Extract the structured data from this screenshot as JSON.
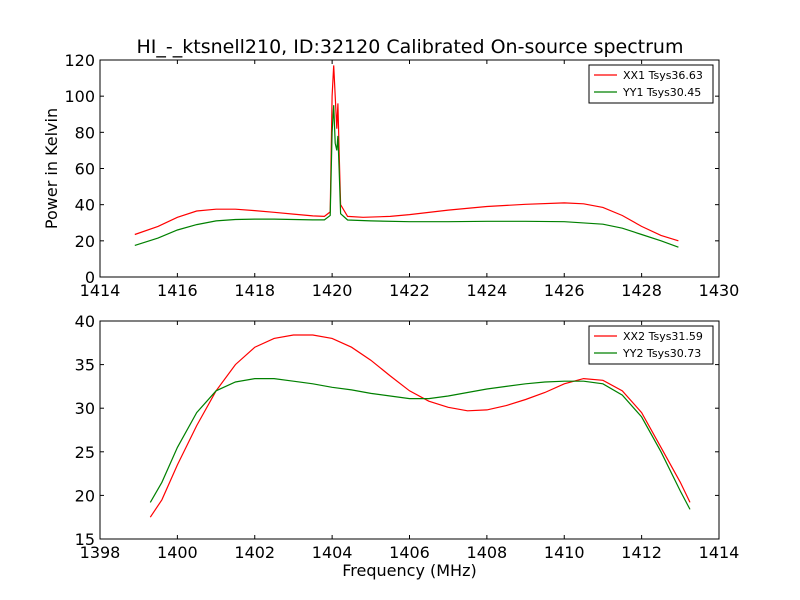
{
  "title": "HI_-_ktsnell210, ID:32120 Calibrated On-source spectrum",
  "chart_data": [
    {
      "type": "line",
      "ylabel": "Power in Kelvin",
      "xlabel": "",
      "xlim": [
        1414,
        1430
      ],
      "ylim": [
        0,
        120
      ],
      "x_ticks": [
        1414,
        1416,
        1418,
        1420,
        1422,
        1424,
        1426,
        1428,
        1430
      ],
      "y_ticks": [
        0,
        20,
        40,
        60,
        80,
        100,
        120
      ],
      "legend_position": "top-right",
      "series": [
        {
          "name": "XX1 Tsys36.63",
          "color": "#ff0000",
          "points": [
            [
              1414.9,
              23.5
            ],
            [
              1415.5,
              28
            ],
            [
              1416,
              33
            ],
            [
              1416.5,
              36.5
            ],
            [
              1417,
              37.5
            ],
            [
              1417.5,
              37.5
            ],
            [
              1418,
              36.7
            ],
            [
              1418.5,
              35.8
            ],
            [
              1419,
              34.8
            ],
            [
              1419.5,
              33.8
            ],
            [
              1419.8,
              33.5
            ],
            [
              1419.95,
              36
            ],
            [
              1420.0,
              100
            ],
            [
              1420.04,
              117
            ],
            [
              1420.08,
              100
            ],
            [
              1420.12,
              82
            ],
            [
              1420.15,
              96
            ],
            [
              1420.18,
              70
            ],
            [
              1420.22,
              40
            ],
            [
              1420.4,
              33.5
            ],
            [
              1420.8,
              33
            ],
            [
              1421.5,
              33.5
            ],
            [
              1422,
              34.5
            ],
            [
              1423,
              37
            ],
            [
              1424,
              39
            ],
            [
              1425,
              40.2
            ],
            [
              1426,
              41
            ],
            [
              1426.5,
              40.5
            ],
            [
              1427,
              38.5
            ],
            [
              1427.5,
              34
            ],
            [
              1428,
              28
            ],
            [
              1428.5,
              23
            ],
            [
              1428.95,
              20
            ]
          ]
        },
        {
          "name": "YY1 Tsys30.45",
          "color": "#008000",
          "points": [
            [
              1414.9,
              17.5
            ],
            [
              1415.5,
              21.5
            ],
            [
              1416,
              26
            ],
            [
              1416.5,
              29
            ],
            [
              1417,
              31
            ],
            [
              1417.5,
              31.8
            ],
            [
              1418,
              32
            ],
            [
              1418.5,
              32
            ],
            [
              1419,
              31.8
            ],
            [
              1419.5,
              31.6
            ],
            [
              1419.8,
              31.6
            ],
            [
              1419.95,
              34
            ],
            [
              1420.0,
              80
            ],
            [
              1420.04,
              95
            ],
            [
              1420.08,
              74
            ],
            [
              1420.12,
              70
            ],
            [
              1420.15,
              78
            ],
            [
              1420.18,
              60
            ],
            [
              1420.22,
              35
            ],
            [
              1420.4,
              31.5
            ],
            [
              1421,
              31
            ],
            [
              1422,
              30.6
            ],
            [
              1423,
              30.6
            ],
            [
              1424,
              30.8
            ],
            [
              1425,
              30.8
            ],
            [
              1426,
              30.6
            ],
            [
              1427,
              29.2
            ],
            [
              1427.5,
              27
            ],
            [
              1428,
              23.5
            ],
            [
              1428.5,
              20
            ],
            [
              1428.95,
              16.5
            ]
          ]
        }
      ]
    },
    {
      "type": "line",
      "ylabel": "",
      "xlabel": "Frequency (MHz)",
      "xlim": [
        1398,
        1414
      ],
      "ylim": [
        15,
        40
      ],
      "x_ticks": [
        1398,
        1400,
        1402,
        1404,
        1406,
        1408,
        1410,
        1412,
        1414
      ],
      "y_ticks": [
        15,
        20,
        25,
        30,
        35,
        40
      ],
      "legend_position": "top-right",
      "series": [
        {
          "name": "XX2 Tsys31.59",
          "color": "#ff0000",
          "points": [
            [
              1399.3,
              17.5
            ],
            [
              1399.6,
              19.5
            ],
            [
              1400,
              23.5
            ],
            [
              1400.5,
              28
            ],
            [
              1401,
              32
            ],
            [
              1401.5,
              35
            ],
            [
              1402,
              37
            ],
            [
              1402.5,
              38
            ],
            [
              1403,
              38.4
            ],
            [
              1403.5,
              38.4
            ],
            [
              1404,
              38
            ],
            [
              1404.5,
              37
            ],
            [
              1405,
              35.5
            ],
            [
              1405.5,
              33.7
            ],
            [
              1406,
              32
            ],
            [
              1406.5,
              30.8
            ],
            [
              1407,
              30.1
            ],
            [
              1407.5,
              29.7
            ],
            [
              1408,
              29.8
            ],
            [
              1408.5,
              30.3
            ],
            [
              1409,
              31
            ],
            [
              1409.5,
              31.8
            ],
            [
              1410,
              32.8
            ],
            [
              1410.5,
              33.4
            ],
            [
              1411,
              33.2
            ],
            [
              1411.5,
              32
            ],
            [
              1412,
              29.5
            ],
            [
              1412.5,
              25.5
            ],
            [
              1413,
              21.5
            ],
            [
              1413.25,
              19.2
            ]
          ]
        },
        {
          "name": "YY2 Tsys30.73",
          "color": "#008000",
          "points": [
            [
              1399.3,
              19.2
            ],
            [
              1399.6,
              21.5
            ],
            [
              1400,
              25.5
            ],
            [
              1400.5,
              29.5
            ],
            [
              1401,
              32
            ],
            [
              1401.5,
              33
            ],
            [
              1402,
              33.4
            ],
            [
              1402.5,
              33.4
            ],
            [
              1403,
              33.1
            ],
            [
              1403.5,
              32.8
            ],
            [
              1404,
              32.4
            ],
            [
              1404.5,
              32.1
            ],
            [
              1405,
              31.7
            ],
            [
              1405.5,
              31.4
            ],
            [
              1406,
              31.1
            ],
            [
              1406.5,
              31.1
            ],
            [
              1407,
              31.4
            ],
            [
              1407.5,
              31.8
            ],
            [
              1408,
              32.2
            ],
            [
              1408.5,
              32.5
            ],
            [
              1409,
              32.8
            ],
            [
              1409.5,
              33
            ],
            [
              1410,
              33.1
            ],
            [
              1410.5,
              33.1
            ],
            [
              1411,
              32.8
            ],
            [
              1411.5,
              31.5
            ],
            [
              1412,
              29
            ],
            [
              1412.5,
              25
            ],
            [
              1413,
              20.5
            ],
            [
              1413.25,
              18.4
            ]
          ]
        }
      ]
    }
  ]
}
